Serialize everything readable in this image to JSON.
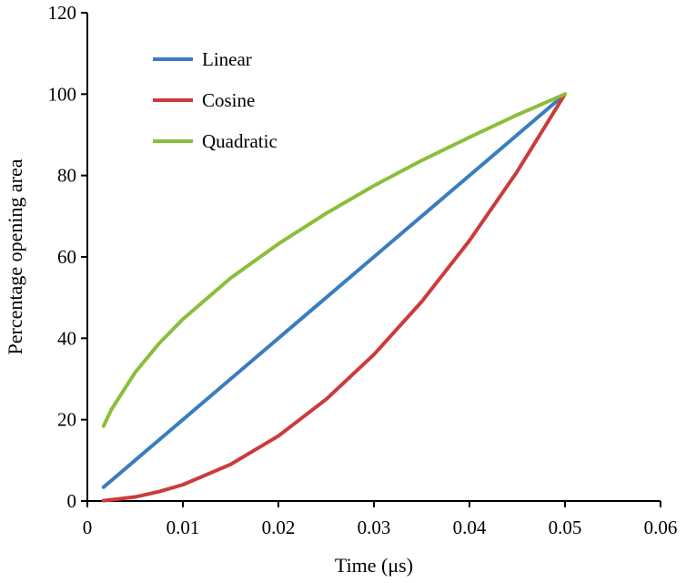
{
  "chart_data": {
    "type": "line",
    "title": "",
    "xlabel": "Time (μs)",
    "ylabel": "Percentage opening area",
    "xlim": [
      0,
      0.06
    ],
    "ylim": [
      0,
      120
    ],
    "xticks": [
      "0",
      "0.01",
      "0.02",
      "0.03",
      "0.04",
      "0.05",
      "0.06"
    ],
    "yticks": [
      "0",
      "20",
      "40",
      "60",
      "80",
      "100",
      "120"
    ],
    "grid": false,
    "legend_position": "top-left",
    "x": [
      0.0017,
      0.0025,
      0.005,
      0.0075,
      0.01,
      0.015,
      0.02,
      0.025,
      0.03,
      0.035,
      0.04,
      0.045,
      0.05
    ],
    "series": [
      {
        "name": "Linear",
        "color": "#3a7dbf",
        "values": [
          3.4,
          5,
          10,
          15,
          20,
          30,
          40,
          50,
          60,
          70,
          80,
          90,
          100
        ]
      },
      {
        "name": "Cosine",
        "color": "#cc3b3b",
        "values": [
          0.1,
          0.3,
          1,
          2.3,
          4,
          9,
          16,
          25,
          36,
          49,
          64,
          81,
          100
        ]
      },
      {
        "name": "Quadratic",
        "color": "#8cbd3a",
        "values": [
          18.4,
          22.4,
          31.6,
          38.7,
          44.7,
          54.8,
          63.2,
          70.7,
          77.5,
          83.7,
          89.4,
          94.9,
          100
        ]
      }
    ]
  }
}
